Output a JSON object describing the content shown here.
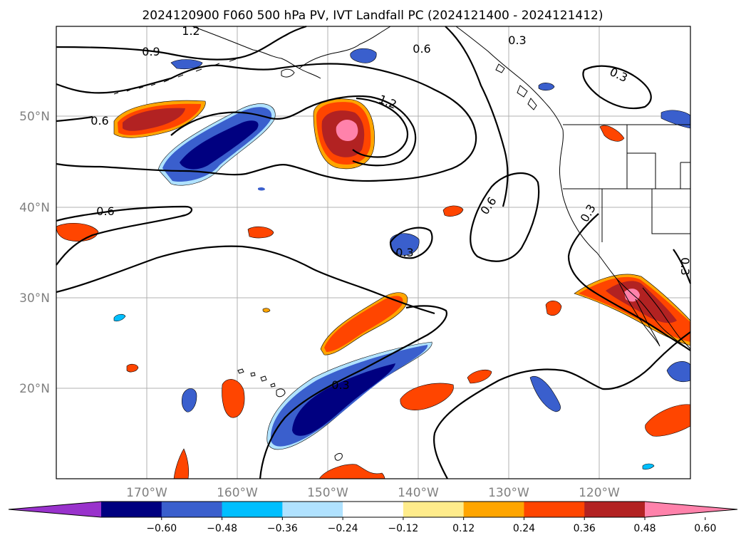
{
  "title": "2024120900 F060 500 hPa PV, IVT Landfall PC (2024121400 - 2024121412)",
  "map": {
    "lat_labels": [
      "50°N",
      "40°N",
      "30°N",
      "20°N"
    ],
    "lon_labels": [
      "170°W",
      "160°W",
      "150°W",
      "140°W",
      "130°W",
      "120°W"
    ]
  },
  "contour_labels": [
    "1.2",
    "0.9",
    "0.6",
    "0.6",
    "1.2",
    "0.6",
    "0.3",
    "0.3",
    "0.6",
    "0.3",
    "0.3",
    "0.3",
    "0.3"
  ],
  "colorbar": {
    "ticks": [
      "−0.60",
      "−0.48",
      "−0.36",
      "−0.24",
      "−0.12",
      "0.12",
      "0.24",
      "0.36",
      "0.48",
      "0.60"
    ],
    "colors": [
      "#9932cc",
      "#000080",
      "#3a5fcd",
      "#00bfff",
      "#b0e2ff",
      "#ffffff",
      "#ffec8b",
      "#ffa500",
      "#ff4500",
      "#b22222",
      "#ff82ab"
    ]
  }
}
